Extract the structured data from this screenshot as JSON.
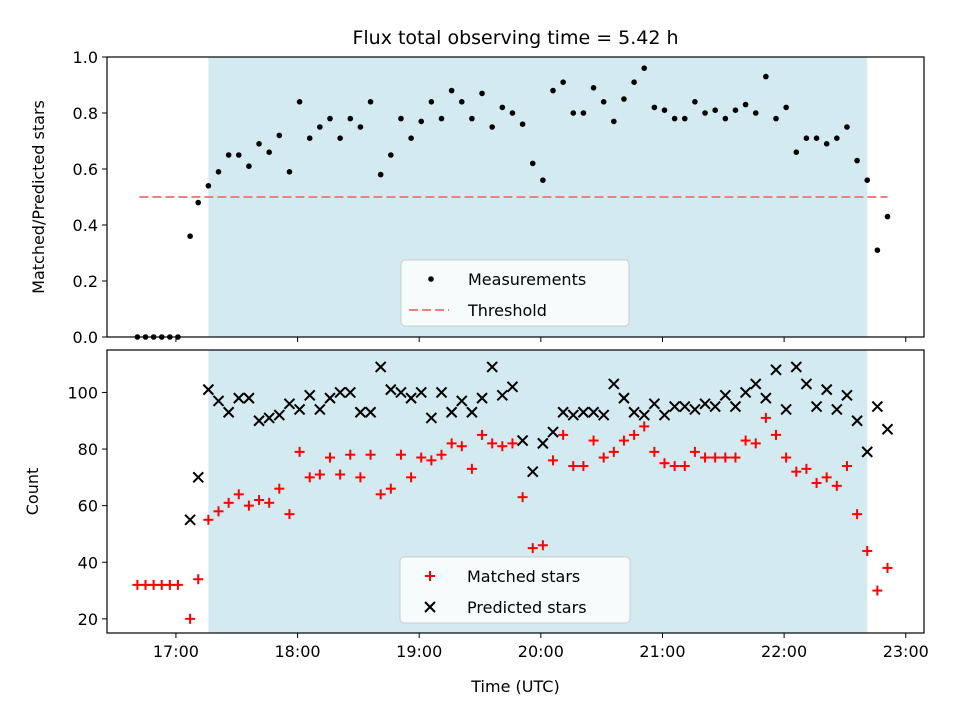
{
  "chart_data": [
    {
      "type": "scatter",
      "title": "Flux total observing time = 5.42 h",
      "xlabel": "",
      "ylabel": "Matched/Predicted stars",
      "xlim": [
        "16:26",
        "23:09"
      ],
      "ylim": [
        0,
        1.0
      ],
      "yticks": [
        "0.0",
        "0.2",
        "0.4",
        "0.6",
        "0.8",
        "1.0"
      ],
      "shaded_span": [
        "17:16",
        "22:41"
      ],
      "shaded_color": "#d3eaf1",
      "threshold": {
        "name": "Threshold",
        "y": 0.5,
        "x_range": [
          "16:42",
          "22:51"
        ],
        "color": "#f08080"
      },
      "legend": {
        "placement": "lower-center",
        "entries": [
          {
            "label": "Measurements",
            "marker": "dot",
            "color": "#000000"
          },
          {
            "label": "Threshold",
            "marker": "dashed-line",
            "color": "#f08080"
          }
        ]
      },
      "series": [
        {
          "name": "Measurements",
          "marker": "dot",
          "color": "#000000",
          "x": [
            "16:41",
            "16:45",
            "16:49",
            "16:53",
            "16:57",
            "17:01",
            "17:07",
            "17:11",
            "17:16",
            "17:21",
            "17:26",
            "17:31",
            "17:36",
            "17:41",
            "17:46",
            "17:51",
            "17:56",
            "18:01",
            "18:06",
            "18:11",
            "18:16",
            "18:21",
            "18:26",
            "18:31",
            "18:36",
            "18:41",
            "18:46",
            "18:51",
            "18:56",
            "19:01",
            "19:06",
            "19:11",
            "19:16",
            "19:21",
            "19:26",
            "19:31",
            "19:36",
            "19:41",
            "19:46",
            "19:51",
            "19:56",
            "20:01",
            "20:06",
            "20:11",
            "20:16",
            "20:21",
            "20:26",
            "20:31",
            "20:36",
            "20:41",
            "20:46",
            "20:51",
            "20:56",
            "21:01",
            "21:06",
            "21:11",
            "21:16",
            "21:21",
            "21:26",
            "21:31",
            "21:36",
            "21:41",
            "21:46",
            "21:51",
            "21:56",
            "22:01",
            "22:06",
            "22:11",
            "22:16",
            "22:21",
            "22:26",
            "22:31",
            "22:36",
            "22:41",
            "22:46",
            "22:51"
          ],
          "y": [
            0.0,
            0.0,
            0.0,
            0.0,
            0.0,
            0.0,
            0.36,
            0.48,
            0.54,
            0.59,
            0.65,
            0.65,
            0.61,
            0.69,
            0.66,
            0.72,
            0.59,
            0.84,
            0.71,
            0.75,
            0.78,
            0.71,
            0.78,
            0.75,
            0.84,
            0.58,
            0.65,
            0.78,
            0.71,
            0.77,
            0.84,
            0.78,
            0.88,
            0.84,
            0.78,
            0.87,
            0.75,
            0.82,
            0.8,
            0.76,
            0.62,
            0.56,
            0.88,
            0.91,
            0.8,
            0.8,
            0.89,
            0.84,
            0.77,
            0.85,
            0.91,
            0.96,
            0.82,
            0.81,
            0.78,
            0.78,
            0.84,
            0.8,
            0.81,
            0.78,
            0.81,
            0.83,
            0.8,
            0.93,
            0.78,
            0.82,
            0.66,
            0.71,
            0.71,
            0.69,
            0.71,
            0.75,
            0.63,
            0.56,
            0.31,
            0.43
          ]
        }
      ]
    },
    {
      "type": "scatter",
      "title": "",
      "xlabel": "Time (UTC)",
      "ylabel": "Count",
      "xlim": [
        "16:26",
        "23:09"
      ],
      "ylim": [
        15,
        115
      ],
      "yticks": [
        "20",
        "40",
        "60",
        "80",
        "100"
      ],
      "xticks": [
        "17:00",
        "18:00",
        "19:00",
        "20:00",
        "21:00",
        "22:00",
        "23:00"
      ],
      "shaded_span": [
        "17:16",
        "22:41"
      ],
      "shaded_color": "#d3eaf1",
      "legend": {
        "placement": "lower-center",
        "entries": [
          {
            "label": "Matched stars",
            "marker": "plus",
            "color": "#ff0000"
          },
          {
            "label": "Predicted stars",
            "marker": "x",
            "color": "#000000"
          }
        ]
      },
      "series": [
        {
          "name": "Matched stars",
          "marker": "plus",
          "color": "#ff0000",
          "x": [
            "16:41",
            "16:45",
            "16:49",
            "16:53",
            "16:57",
            "17:01",
            "17:07",
            "17:11",
            "17:16",
            "17:21",
            "17:26",
            "17:31",
            "17:36",
            "17:41",
            "17:46",
            "17:51",
            "17:56",
            "18:01",
            "18:06",
            "18:11",
            "18:16",
            "18:21",
            "18:26",
            "18:31",
            "18:36",
            "18:41",
            "18:46",
            "18:51",
            "18:56",
            "19:01",
            "19:06",
            "19:11",
            "19:16",
            "19:21",
            "19:26",
            "19:31",
            "19:36",
            "19:41",
            "19:46",
            "19:51",
            "19:56",
            "20:01",
            "20:06",
            "20:11",
            "20:16",
            "20:21",
            "20:26",
            "20:31",
            "20:36",
            "20:41",
            "20:46",
            "20:51",
            "20:56",
            "21:01",
            "21:06",
            "21:11",
            "21:16",
            "21:21",
            "21:26",
            "21:31",
            "21:36",
            "21:41",
            "21:46",
            "21:51",
            "21:56",
            "22:01",
            "22:06",
            "22:11",
            "22:16",
            "22:21",
            "22:26",
            "22:31",
            "22:36",
            "22:41",
            "22:46",
            "22:51"
          ],
          "y": [
            32,
            32,
            32,
            32,
            32,
            32,
            20,
            34,
            55,
            58,
            61,
            64,
            60,
            62,
            61,
            66,
            57,
            79,
            70,
            71,
            77,
            71,
            78,
            70,
            78,
            64,
            66,
            78,
            70,
            77,
            76,
            78,
            82,
            81,
            73,
            85,
            82,
            81,
            82,
            63,
            45,
            46,
            76,
            85,
            74,
            74,
            83,
            77,
            79,
            83,
            85,
            88,
            79,
            75,
            74,
            74,
            79,
            77,
            77,
            77,
            77,
            83,
            82,
            91,
            85,
            77,
            72,
            73,
            68,
            70,
            67,
            74,
            57,
            44,
            30,
            38
          ]
        },
        {
          "name": "Predicted stars",
          "marker": "x",
          "color": "#000000",
          "x": [
            "17:07",
            "17:11",
            "17:16",
            "17:21",
            "17:26",
            "17:31",
            "17:36",
            "17:41",
            "17:46",
            "17:51",
            "17:56",
            "18:01",
            "18:06",
            "18:11",
            "18:16",
            "18:21",
            "18:26",
            "18:31",
            "18:36",
            "18:41",
            "18:46",
            "18:51",
            "18:56",
            "19:01",
            "19:06",
            "19:11",
            "19:16",
            "19:21",
            "19:26",
            "19:31",
            "19:36",
            "19:41",
            "19:46",
            "19:51",
            "19:56",
            "20:01",
            "20:06",
            "20:11",
            "20:16",
            "20:21",
            "20:26",
            "20:31",
            "20:36",
            "20:41",
            "20:46",
            "20:51",
            "20:56",
            "21:01",
            "21:06",
            "21:11",
            "21:16",
            "21:21",
            "21:26",
            "21:31",
            "21:36",
            "21:41",
            "21:46",
            "21:51",
            "21:56",
            "22:01",
            "22:06",
            "22:11",
            "22:16",
            "22:21",
            "22:26",
            "22:31",
            "22:36",
            "22:41",
            "22:46",
            "22:51"
          ],
          "y": [
            55,
            70,
            101,
            97,
            93,
            98,
            98,
            90,
            91,
            92,
            96,
            94,
            99,
            94,
            98,
            100,
            100,
            93,
            93,
            109,
            101,
            100,
            98,
            100,
            91,
            100,
            93,
            97,
            93,
            98,
            109,
            99,
            102,
            83,
            72,
            82,
            86,
            93,
            92,
            93,
            93,
            92,
            103,
            98,
            93,
            92,
            96,
            92,
            95,
            95,
            94,
            96,
            95,
            99,
            95,
            100,
            103,
            98,
            108,
            94,
            109,
            103,
            95,
            101,
            94,
            99,
            90,
            79,
            95,
            87
          ]
        }
      ]
    }
  ]
}
